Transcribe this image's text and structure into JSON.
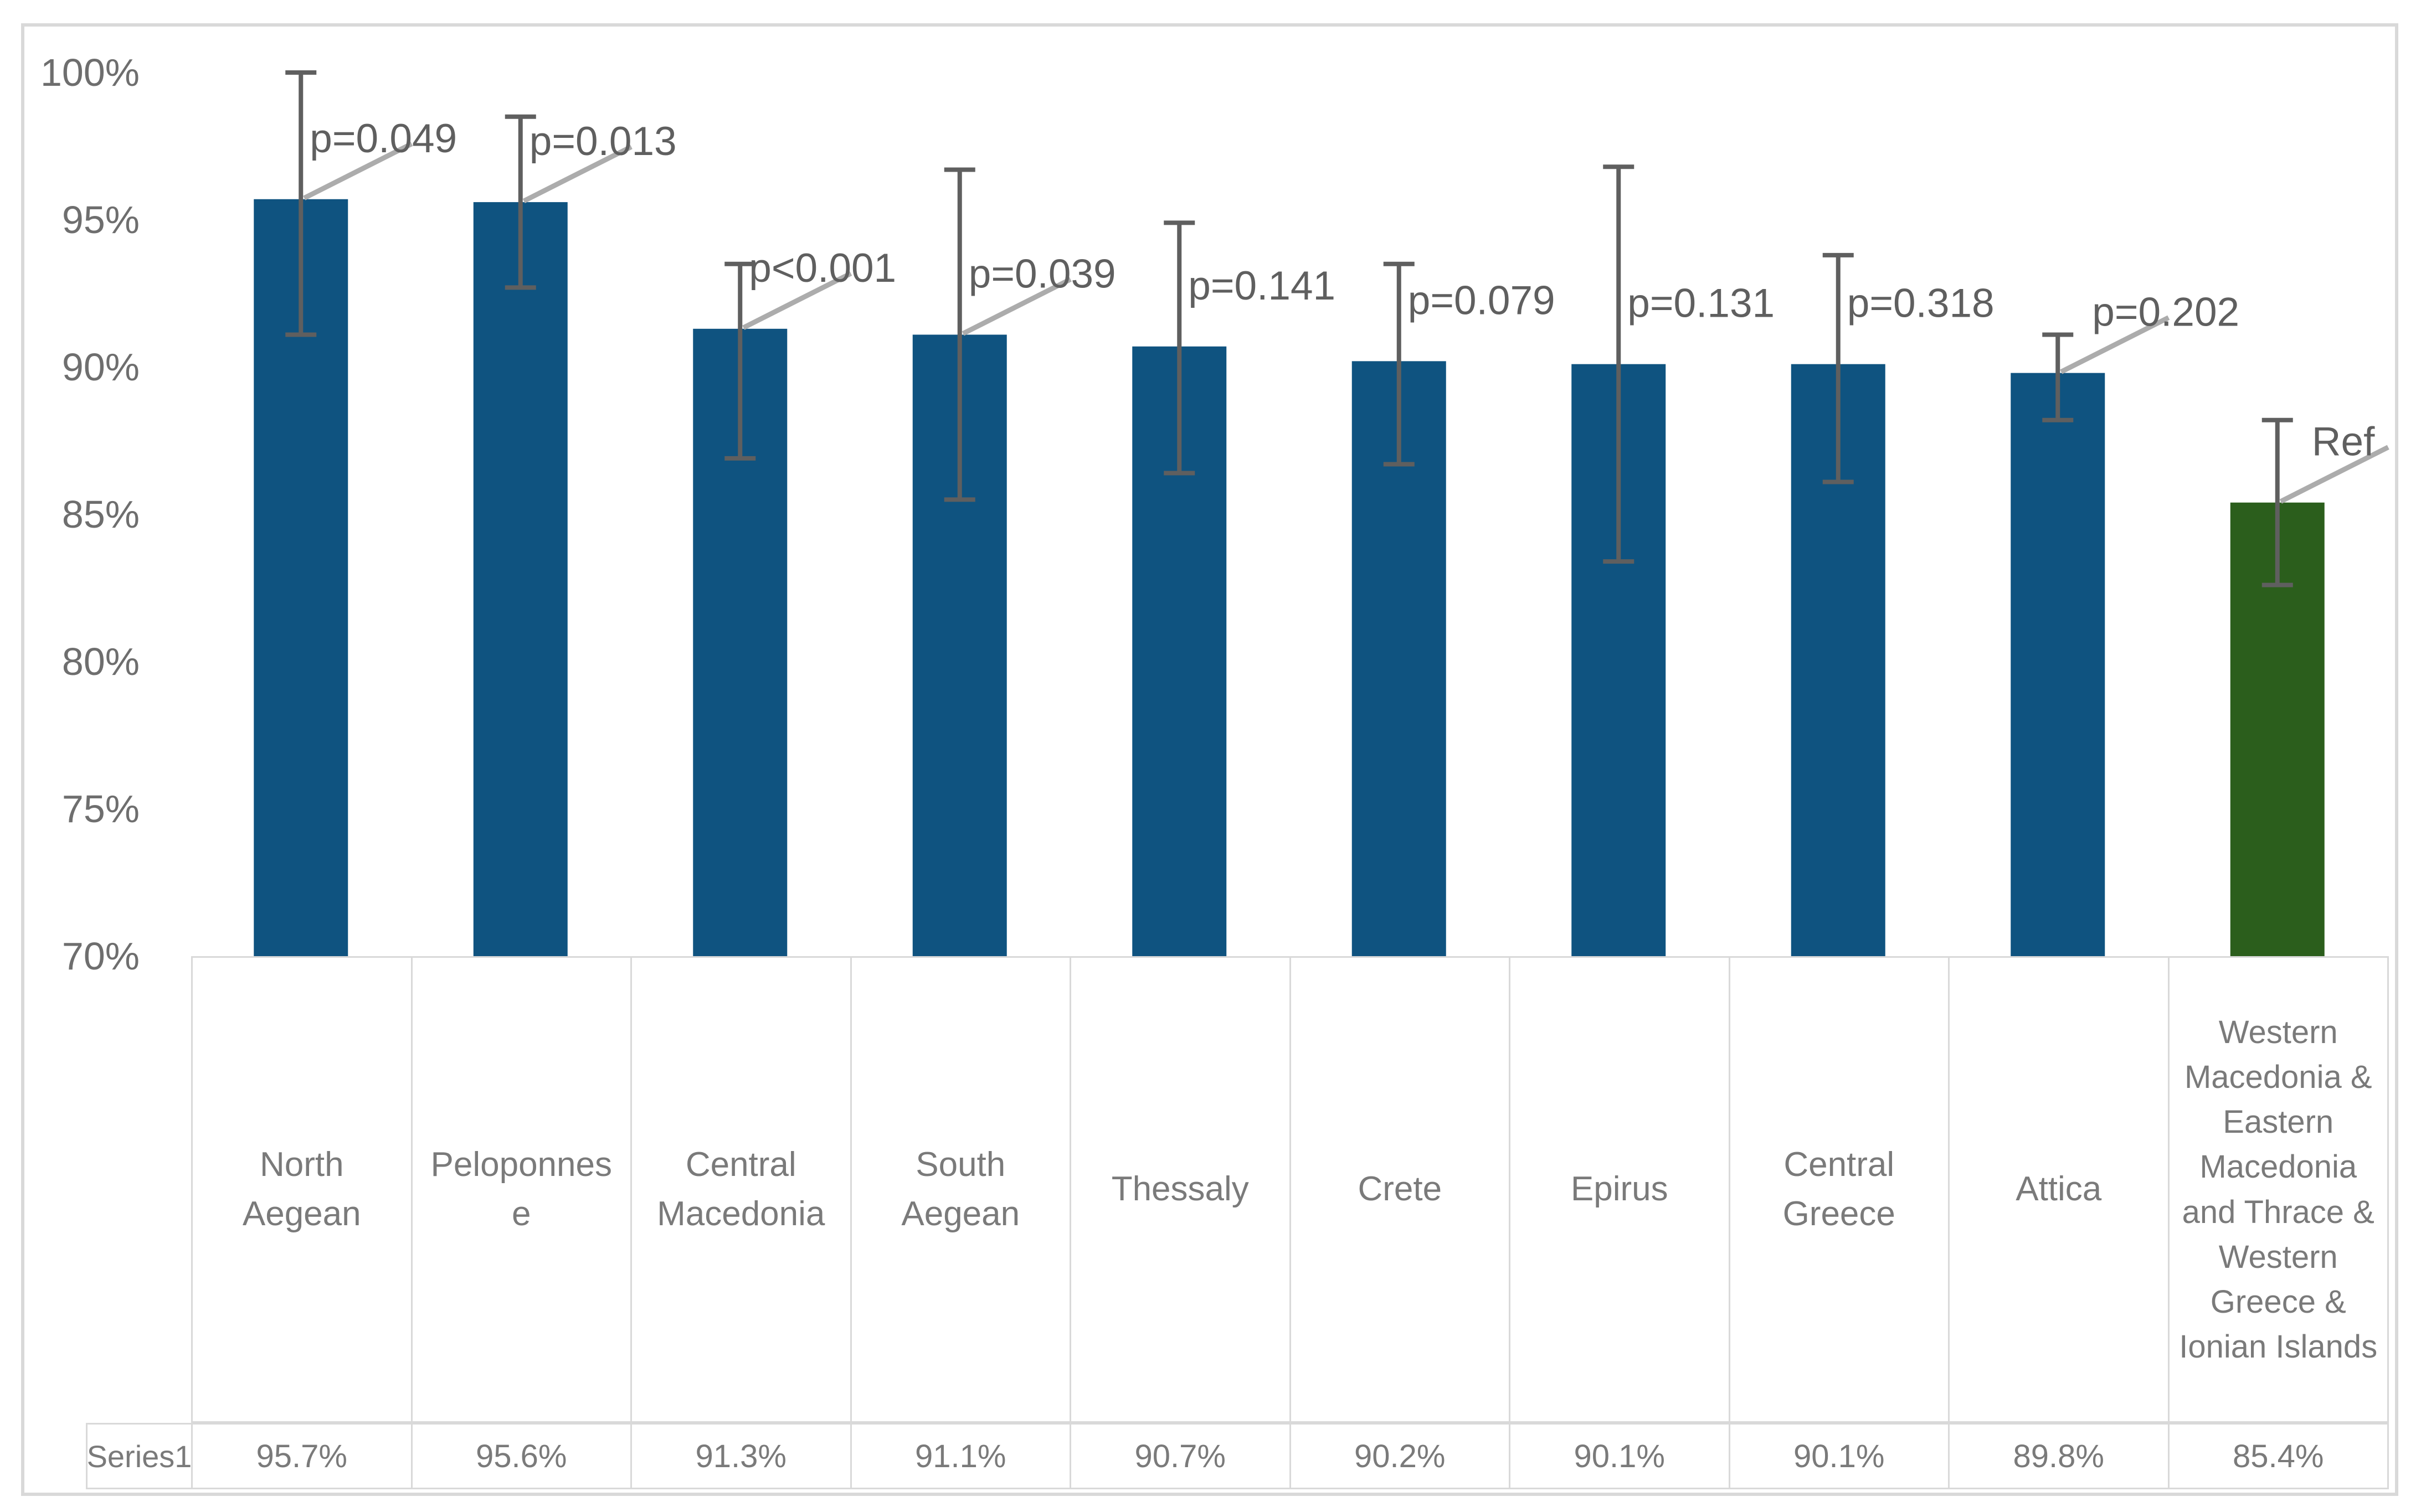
{
  "chart_data": {
    "type": "bar",
    "title": "",
    "xlabel": "",
    "ylabel": "",
    "ylim": [
      70,
      100
    ],
    "ytick_values": [
      100,
      95,
      90,
      85,
      80,
      75,
      70
    ],
    "ytick_labels": [
      "100%",
      "95%",
      "90%",
      "85%",
      "80%",
      "75%",
      "70%"
    ],
    "grid": false,
    "legend_position": "none",
    "series_name": "Series1",
    "categories": [
      "North Aegean",
      "Peloponnese",
      "Central Macedonia",
      "South Aegean",
      "Thessaly",
      "Crete",
      "Epirus",
      "Central Greece",
      "Attica",
      "Western Macedonia & Eastern Macedonia and Thrace & Western Greece & Ionian Islands"
    ],
    "values": [
      95.7,
      95.6,
      91.3,
      91.1,
      90.7,
      90.2,
      90.1,
      90.1,
      89.8,
      85.4
    ],
    "value_labels": [
      "95.7%",
      "95.6%",
      "91.3%",
      "91.1%",
      "90.7%",
      "90.2%",
      "90.1%",
      "90.1%",
      "89.8%",
      "85.4%"
    ],
    "ci_high": [
      100.0,
      98.5,
      93.5,
      96.7,
      94.9,
      93.5,
      96.8,
      93.8,
      91.1,
      88.2
    ],
    "ci_low": [
      91.1,
      92.7,
      86.9,
      85.5,
      86.4,
      86.7,
      83.4,
      86.1,
      88.2,
      82.6
    ],
    "point_labels": [
      "p=0.049",
      "p=0.013",
      "p<0.001",
      "p=0.039",
      "p=0.141",
      "p=0.079",
      "p=0.131",
      "p=0.318",
      "p=0.202",
      "Ref"
    ],
    "leader_flags": [
      true,
      true,
      true,
      true,
      false,
      false,
      false,
      false,
      true,
      true
    ],
    "bar_colors": [
      "#0f5380",
      "#0f5380",
      "#0f5380",
      "#0f5380",
      "#0f5380",
      "#0f5380",
      "#0f5380",
      "#0f5380",
      "#0f5380",
      "#2b5e1c"
    ]
  },
  "colors": {
    "bar_blue": "#0f5380",
    "bar_green": "#2b5e1c",
    "error_bar": "#5f5f5f",
    "leader_line": "#acacac",
    "tick_text": "#6e6e6e",
    "p_label_text": "#5f5f5f",
    "table_text": "#7a7a7a",
    "border": "#d9d9d9"
  }
}
